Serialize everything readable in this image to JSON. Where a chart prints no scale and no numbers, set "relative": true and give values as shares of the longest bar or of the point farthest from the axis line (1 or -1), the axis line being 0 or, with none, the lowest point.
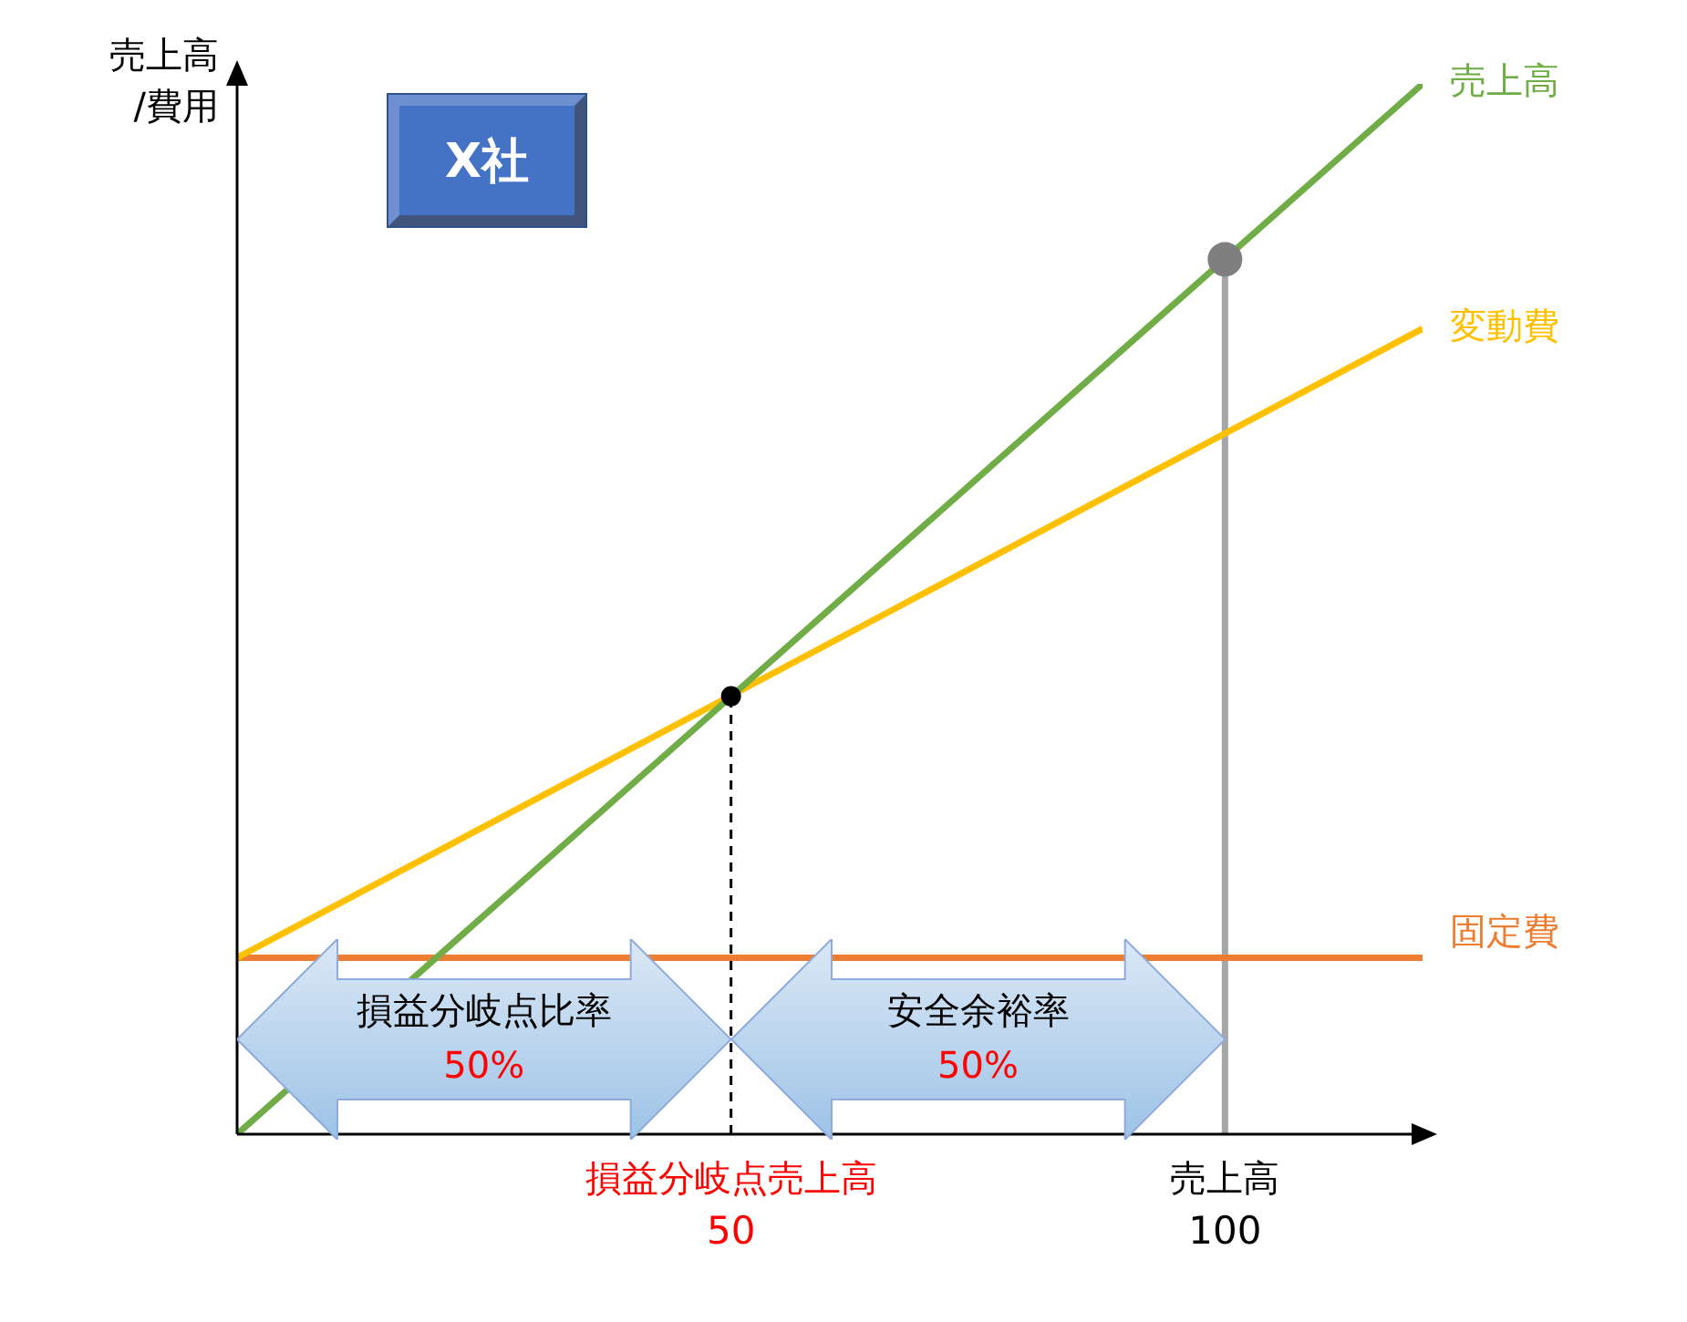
{
  "chart_data": {
    "type": "line",
    "title": "X社",
    "ylabel": "売上高\n/費用",
    "relative": true,
    "legend": false,
    "grid": false,
    "tick_labels": "x",
    "xlim": [
      0,
      120
    ],
    "xticks": [
      50,
      100
    ],
    "annotations": [
      "損益分岐点売上高",
      "売上高",
      "損益分岐点比率",
      "50%",
      "安全余裕率",
      "50%"
    ],
    "series": [
      {
        "name": "売上高",
        "color": "#70ad47",
        "x": [
          0,
          120
        ],
        "values": [
          0,
          1
        ]
      },
      {
        "name": "変動費",
        "color": "#ffc000",
        "x": [
          0,
          120
        ],
        "values": [
          0.168,
          0.767
        ]
      },
      {
        "name": "固定費",
        "color": "#ed7d31",
        "x": [
          0,
          120
        ],
        "values": [
          0.168,
          0.168
        ]
      },
      {
        "color": "#a6a6a6",
        "x": [
          100,
          100
        ],
        "values": [
          0,
          0.833
        ]
      },
      {
        "color": "#000000",
        "x": [
          50,
          50
        ],
        "values": [
          0,
          0.417
        ],
        "line_style": "dashed"
      },
      {
        "type": "scatter",
        "marker": "circle",
        "color": "#7f7f7f",
        "x": [
          100
        ],
        "values": [
          0.833
        ]
      },
      {
        "type": "scatter",
        "marker": "circle",
        "color": "#000000",
        "x": [
          50
        ],
        "values": [
          0.417
        ]
      }
    ]
  }
}
